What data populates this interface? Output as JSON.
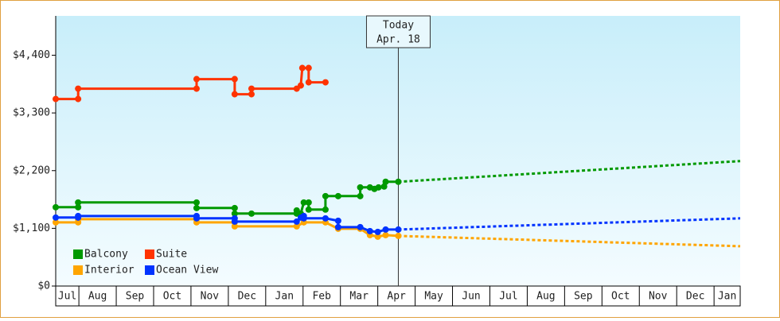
{
  "chart_data": {
    "type": "line",
    "categories": [
      "Jul",
      "Aug",
      "Sep",
      "Oct",
      "Nov",
      "Dec",
      "Jan",
      "Feb",
      "Mar",
      "Apr",
      "May",
      "Jun",
      "Jul",
      "Aug",
      "Sep",
      "Oct",
      "Nov",
      "Dec",
      "Jan"
    ],
    "xlim": [
      0.38,
      18.7
    ],
    "ylim": [
      0,
      5150
    ],
    "yticks": [
      {
        "value": 0,
        "label": "$0"
      },
      {
        "value": 1100,
        "label": "$1,100"
      },
      {
        "value": 2200,
        "label": "$2,200"
      },
      {
        "value": 3300,
        "label": "$3,300"
      },
      {
        "value": 4400,
        "label": "$4,400"
      }
    ],
    "today": {
      "x": 9.55,
      "label": "Today",
      "date": "Apr. 18"
    },
    "legend": "lower left",
    "series": [
      {
        "name": "Balcony",
        "color": "#009900",
        "x": [
          0.38,
          0.98,
          0.98,
          4.15,
          4.15,
          5.17,
          5.17,
          5.62,
          6.83,
          6.83,
          6.94,
          7.02,
          7.15,
          7.15,
          7.6,
          7.6,
          7.94,
          8.53,
          8.53,
          8.79,
          8.91,
          9.02,
          9.17,
          9.21,
          9.55
        ],
        "values": [
          1502,
          1502,
          1593,
          1593,
          1487,
          1487,
          1381,
          1381,
          1381,
          1441,
          1381,
          1593,
          1593,
          1457,
          1457,
          1714,
          1714,
          1714,
          1881,
          1881,
          1851,
          1881,
          1897,
          1988,
          1988
        ],
        "forecast": {
          "x": [
            9.55,
            18.7
          ],
          "values": [
            1988,
            2382
          ]
        }
      },
      {
        "name": "Suite",
        "color": "#ff3300",
        "x": [
          0.38,
          0.98,
          0.98,
          4.15,
          4.15,
          5.17,
          5.17,
          5.62,
          5.62,
          6.83,
          6.94,
          6.98,
          7.15,
          7.15,
          7.6
        ],
        "values": [
          3566,
          3566,
          3763,
          3763,
          3945,
          3945,
          3657,
          3657,
          3763,
          3763,
          3823,
          4157,
          4157,
          3884,
          3884
        ]
      },
      {
        "name": "Interior",
        "color": "#ffa500",
        "x": [
          0.38,
          0.98,
          0.98,
          4.15,
          4.15,
          5.17,
          5.17,
          6.83,
          7.02,
          7.6,
          7.94,
          8.53,
          8.79,
          9.0,
          9.21,
          9.55
        ],
        "values": [
          1214,
          1214,
          1274,
          1274,
          1214,
          1214,
          1138,
          1138,
          1214,
          1214,
          1092,
          1092,
          971,
          941,
          971,
          956
        ],
        "forecast": {
          "x": [
            9.55,
            18.7
          ],
          "values": [
            956,
            759
          ]
        }
      },
      {
        "name": "Ocean View",
        "color": "#0033ff",
        "x": [
          0.38,
          0.98,
          0.98,
          4.15,
          4.15,
          5.17,
          5.17,
          6.83,
          6.94,
          7.02,
          7.02,
          7.6,
          7.94,
          7.94,
          8.53,
          8.79,
          9.0,
          9.21,
          9.55
        ],
        "values": [
          1305,
          1305,
          1335,
          1335,
          1290,
          1290,
          1229,
          1229,
          1305,
          1335,
          1290,
          1290,
          1244,
          1123,
          1123,
          1047,
          1032,
          1077,
          1077
        ],
        "forecast": {
          "x": [
            9.55,
            18.7
          ],
          "values": [
            1077,
            1290
          ]
        }
      }
    ]
  }
}
